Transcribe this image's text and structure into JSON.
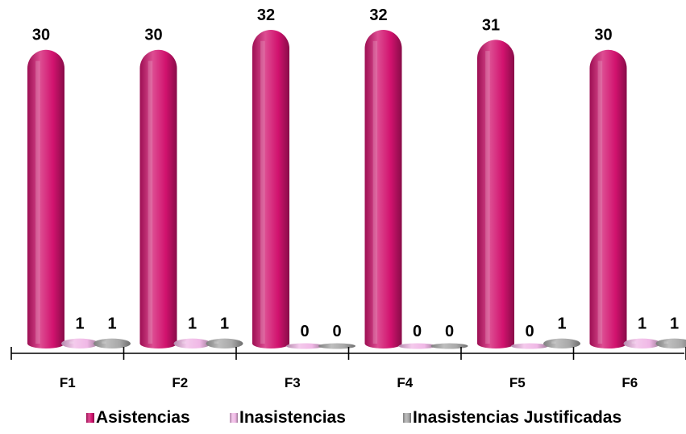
{
  "chart_data": {
    "type": "bar",
    "style": "3d-cylinder",
    "categories": [
      "F1",
      "F2",
      "F3",
      "F4",
      "F5",
      "F6"
    ],
    "series": [
      {
        "name": "Asistencias",
        "values": [
          30,
          30,
          32,
          32,
          31,
          30
        ],
        "color": "#d1126e"
      },
      {
        "name": "Inasistencias",
        "values": [
          1,
          1,
          0,
          0,
          0,
          1
        ],
        "color": "#f0b8e6"
      },
      {
        "name": "Inasistencias Justificadas",
        "values": [
          1,
          1,
          0,
          0,
          1,
          1
        ],
        "color": "#a8a8a8"
      }
    ],
    "value_labels": true,
    "legend": {
      "position": "bottom"
    },
    "grid": false,
    "ylim": [
      0,
      32
    ]
  }
}
